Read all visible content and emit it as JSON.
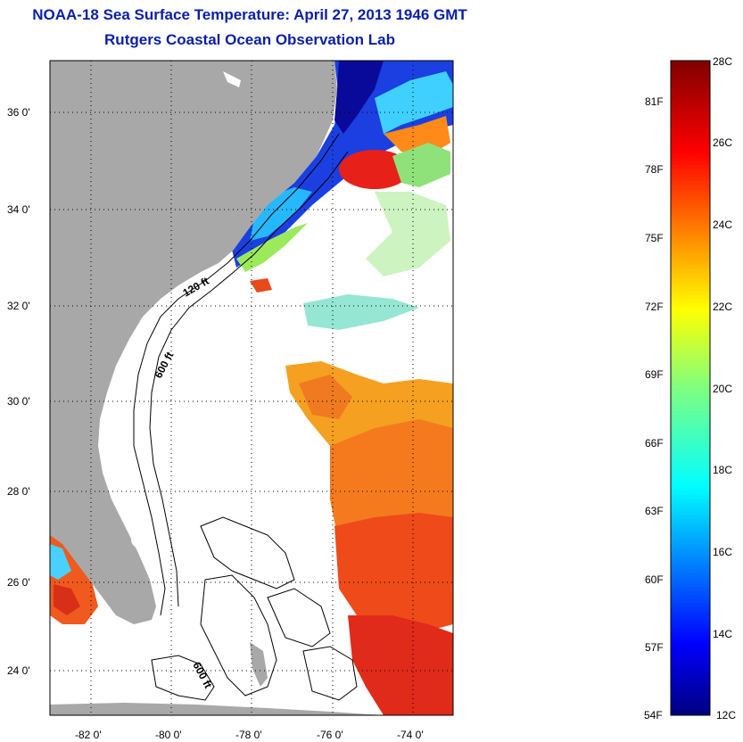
{
  "title": {
    "line1": "NOAA-18 Sea Surface Temperature:  April 27, 2013 1946 GMT",
    "line2": "Rutgers Coastal Ocean Observation Lab"
  },
  "map": {
    "lat_labels": [
      "36 0'",
      "34 0'",
      "32 0'",
      "30 0'",
      "28 0'",
      "26 0'",
      "24 0'"
    ],
    "lon_labels": [
      "-82 0'",
      "-80 0'",
      "-78 0'",
      "-76 0'",
      "-74 0'"
    ],
    "isobath_labels": [
      "120 ft",
      "600 ft",
      "600 ft"
    ],
    "colors": {
      "land": "#a8a8a8",
      "ocean_nodata": "#ffffff",
      "title": "#0a1fa8"
    }
  },
  "colorbar": {
    "fahrenheit": [
      "81F",
      "78F",
      "75F",
      "72F",
      "69F",
      "66F",
      "63F",
      "60F",
      "57F",
      "54F"
    ],
    "celsius": [
      "28C",
      "26C",
      "24C",
      "22C",
      "20C",
      "18C",
      "16C",
      "14C",
      "12C"
    ],
    "range_c": [
      12,
      28
    ]
  }
}
